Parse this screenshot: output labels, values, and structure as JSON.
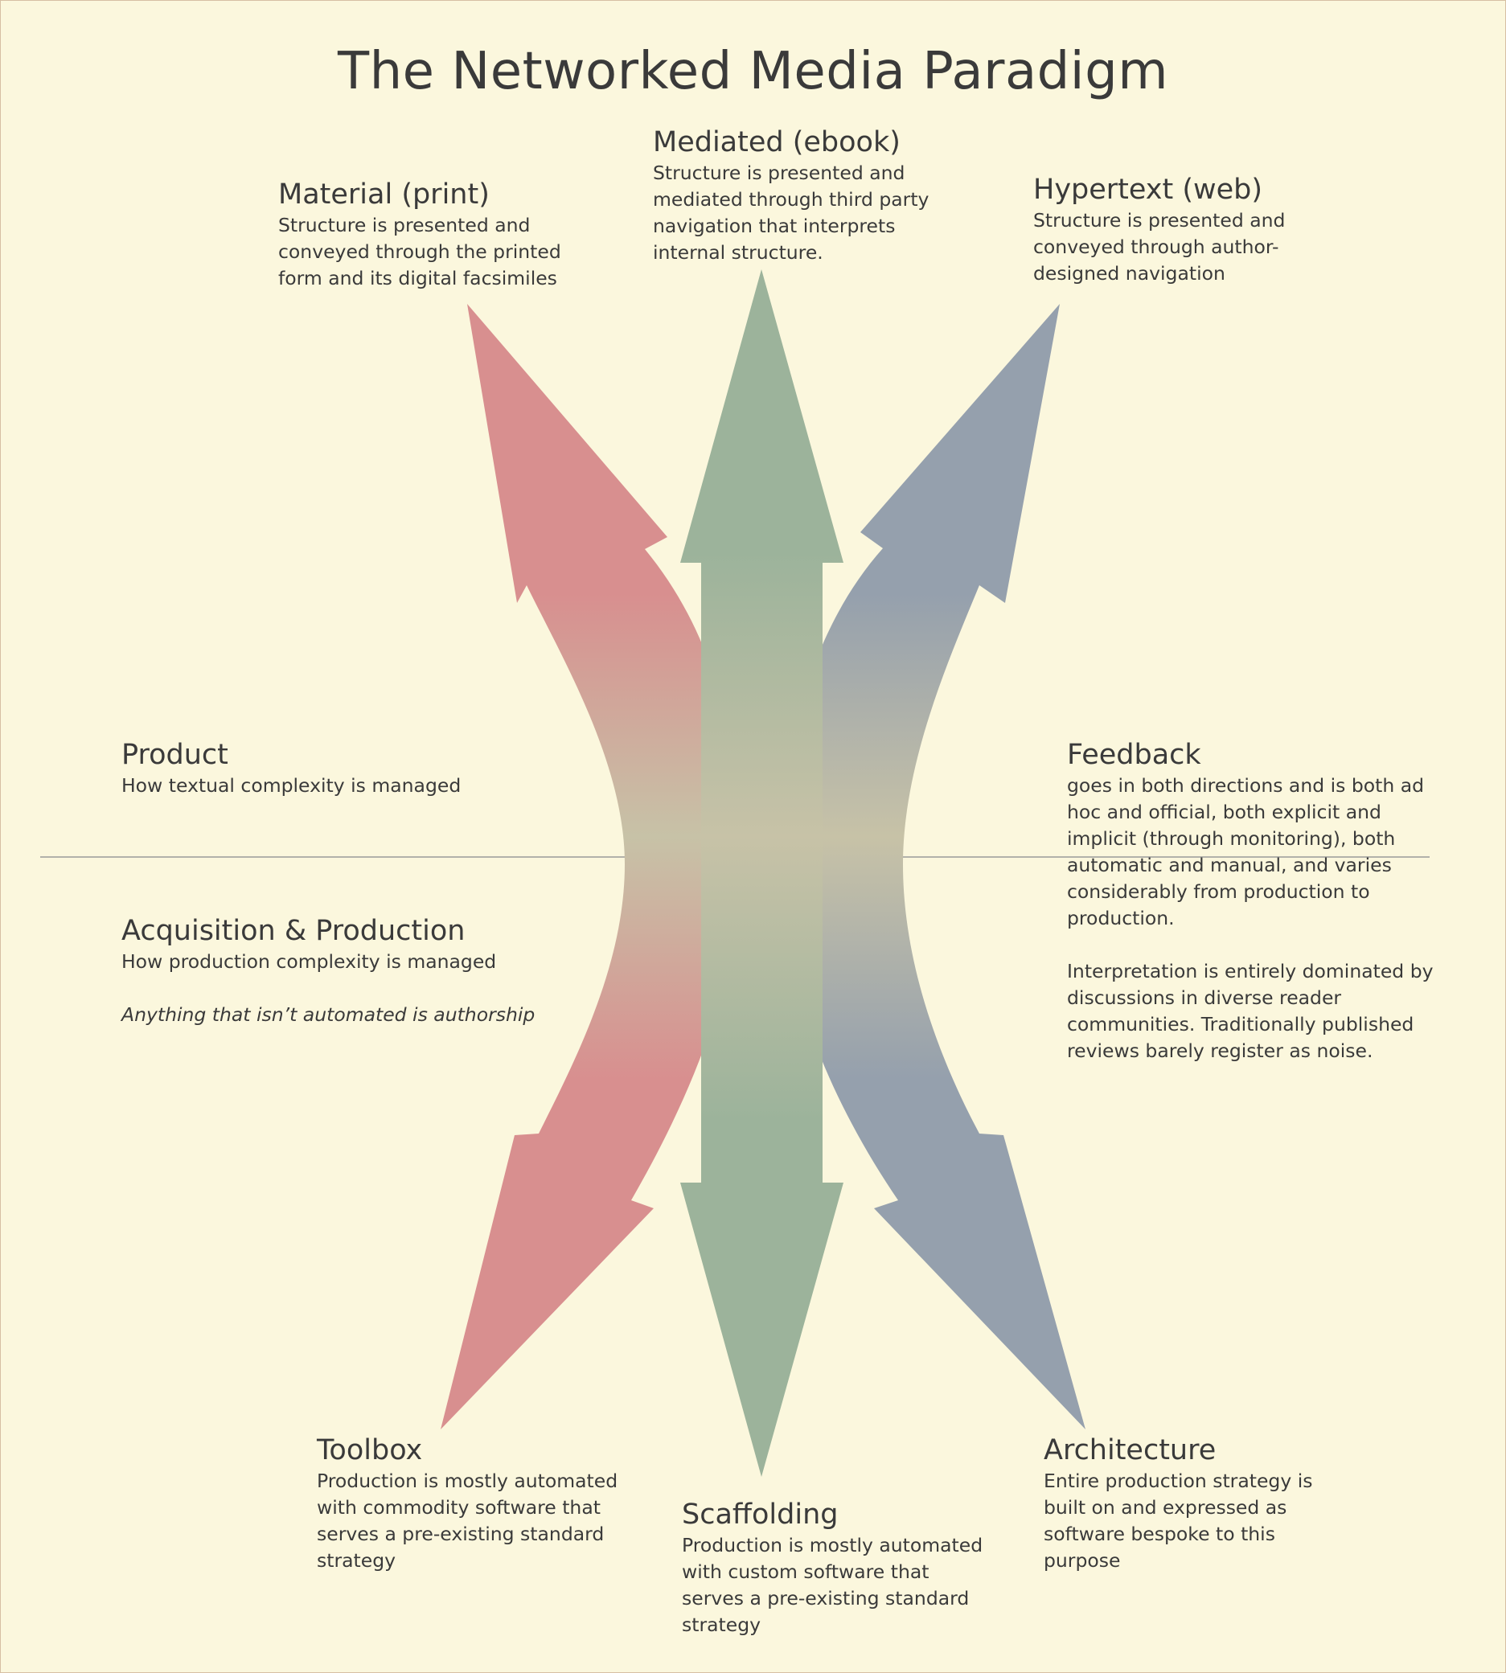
{
  "title": "The Networked Media Paradigm",
  "colors": {
    "background": "#fbf7dd",
    "print_arrow": "#d88f8f",
    "ebook_arrow": "#9cb39b",
    "web_arrow": "#95a0ad",
    "center_blend": "#c7c2a7",
    "divider": "#9a9a9a"
  },
  "material": {
    "heading": "Material (print)",
    "text": "Structure is presented and\nconveyed through the printed\nform and its digital facsimiles"
  },
  "mediated": {
    "heading": "Mediated (ebook)",
    "text": "Structure is presented and\nmediated through third party\nnavigation that interprets\ninternal structure."
  },
  "hypertext": {
    "heading": "Hypertext (web)",
    "text": "Structure is presented and\nconveyed through author-\ndesigned navigation"
  },
  "product": {
    "heading": "Product",
    "text": "How textual complexity is managed"
  },
  "acquisition": {
    "heading": "Acquisition & Production",
    "text": "How production complexity is managed",
    "italic": "Anything that isn’t automated is authorship"
  },
  "feedback": {
    "heading": "Feedback",
    "text": "goes in both directions and is both ad\nhoc and official, both explicit and\nimplicit (through monitoring), both\nautomatic and manual, and varies\nconsiderably from production to\nproduction.",
    "text2": "Interpretation is entirely dominated by\ndiscussions in diverse reader\ncommunities. Traditionally published\nreviews barely register as noise."
  },
  "toolbox": {
    "heading": "Toolbox",
    "text": "Production is mostly automated\nwith commodity software that\nserves a pre-existing standard\nstrategy"
  },
  "scaffolding": {
    "heading": "Scaffolding",
    "text": "Production is mostly automated\nwith custom software that\nserves a pre-existing standard\nstrategy"
  },
  "architecture": {
    "heading": "Architecture",
    "text": "Entire production strategy is\nbuilt on and expressed as\nsoftware bespoke to this\npurpose"
  }
}
